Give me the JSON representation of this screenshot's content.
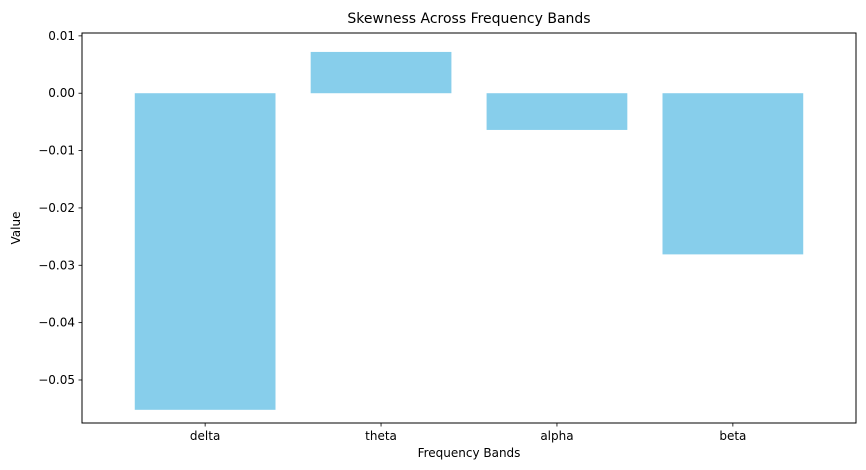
{
  "chart_data": {
    "type": "bar",
    "title": "Skewness Across Frequency Bands",
    "xlabel": "Frequency Bands",
    "ylabel": "Value",
    "categories": [
      "delta",
      "theta",
      "alpha",
      "beta"
    ],
    "values": [
      -0.0552,
      0.0072,
      -0.0064,
      -0.0281
    ],
    "ylim": [
      -0.0575,
      0.0105
    ],
    "yticks": [
      0.01,
      0.0,
      -0.01,
      -0.02,
      -0.03,
      -0.04,
      -0.05
    ],
    "ytick_labels": [
      "0.01",
      "0.00",
      "−0.01",
      "−0.02",
      "−0.03",
      "−0.04",
      "−0.05"
    ],
    "bar_color": "#87ceeb",
    "grid": false,
    "legend": "none"
  }
}
